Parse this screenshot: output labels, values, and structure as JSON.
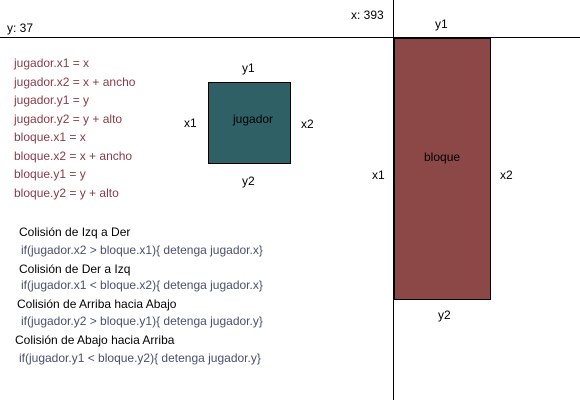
{
  "coords": {
    "y_readout": "y: 37",
    "x_readout": "x: 393"
  },
  "player_vars": [
    "jugador.x1 = x",
    "jugador.x2 = x + ancho",
    "jugador.y1 = y",
    "jugador.y2 = y + alto"
  ],
  "block_vars": [
    "bloque.x1 = x",
    "bloque.x2 = x + ancho",
    "bloque.y1 = y",
    "bloque.y2 = y + alto"
  ],
  "collisions": [
    {
      "title": "Colisión de Izq a Der",
      "code": "if(jugador.x2 > bloque.x1){ detenga jugador.x}"
    },
    {
      "title": "Colisión de Der a Izq",
      "code": "if(jugador.x1 < bloque.x2){ detenga jugador.x}"
    },
    {
      "title": "Colisión de Arriba hacia Abajo",
      "code": "if(jugador.y2 > bloque.y1){ detenga jugador.y}"
    },
    {
      "title": "Colisión de Abajo hacia Arriba",
      "code": "if(jugador.y1 < bloque.y2){ detenga jugador.y}"
    }
  ],
  "player_box": {
    "label": "jugador",
    "top": "y1",
    "bottom": "y2",
    "left": "x1",
    "right": "x2",
    "color": "#2f6066"
  },
  "block_box": {
    "label": "bloque",
    "top": "y1",
    "bottom": "y2",
    "left": "x1",
    "right": "x2",
    "color": "#8c4747"
  }
}
